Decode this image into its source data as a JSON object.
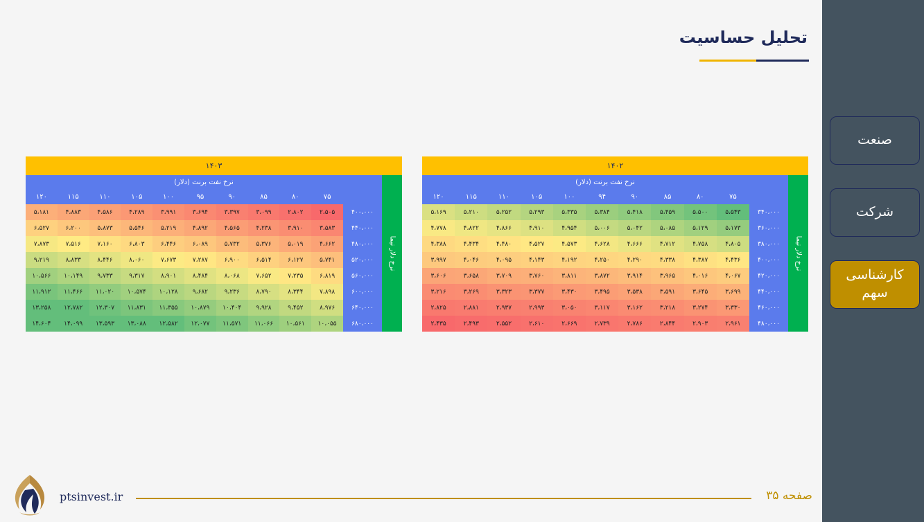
{
  "page": {
    "title": "تحلیل حساسیت",
    "footer_page": "صفحه ۳۵",
    "footer_site": "ptsinvest.ir"
  },
  "sidebar": {
    "items": [
      {
        "label": "صنعت"
      },
      {
        "label": "شرکت"
      },
      {
        "label": "کارشناسی سهم"
      }
    ]
  },
  "colors": {
    "sidebar": "#44535f",
    "active": "#bf8f00",
    "header_blue": "#5b7bec",
    "side_green": "#00b050",
    "year_yellow": "#ffc000",
    "navy": "#1f2a5a"
  },
  "tables": [
    {
      "year": "۱۴۰۲",
      "col_title": "نرخ نفت برنت (دلار)",
      "row_title": "نرخ دلار نیما",
      "cols": [
        "۷۵",
        "۸۰",
        "۸۵",
        "۹۰",
        "۹۴",
        "۱۰۰",
        "۱۰۵",
        "۱۱۰",
        "۱۱۵",
        "۱۲۰"
      ],
      "rows": [
        "۳۴۰،۰۰۰",
        "۳۶۰،۰۰۰",
        "۳۸۰،۰۰۰",
        "۴۰۰،۰۰۰",
        "۴۲۰،۰۰۰",
        "۴۴۰،۰۰۰",
        "۴۶۰،۰۰۰",
        "۴۸۰،۰۰۰"
      ],
      "values": [
        [
          "۵،۵۴۳",
          "۵،۵۰۰",
          "۵،۴۵۹",
          "۵،۴۱۸",
          "۵،۳۸۴",
          "۵،۳۳۵",
          "۵،۲۹۳",
          "۵،۲۵۲",
          "۵،۲۱۰",
          "۵،۱۶۹"
        ],
        [
          "۵،۱۷۳",
          "۵،۱۲۹",
          "۵،۰۸۵",
          "۵،۰۴۲",
          "۵،۰۰۶",
          "۴،۹۵۴",
          "۴،۹۱۰",
          "۴،۸۶۶",
          "۴،۸۲۲",
          "۴،۷۷۸"
        ],
        [
          "۴،۸۰۵",
          "۴،۷۵۸",
          "۴،۷۱۲",
          "۴،۶۶۶",
          "۴،۶۲۸",
          "۴،۵۷۳",
          "۴،۵۲۷",
          "۴،۴۸۰",
          "۴،۴۳۴",
          "۴،۳۸۸"
        ],
        [
          "۴،۴۳۶",
          "۴،۳۸۷",
          "۴،۳۳۸",
          "۴،۲۹۰",
          "۴،۲۵۰",
          "۴،۱۹۲",
          "۴،۱۴۳",
          "۴،۰۹۵",
          "۴،۰۴۶",
          "۳،۹۹۷"
        ],
        [
          "۴،۰۶۷",
          "۴،۰۱۶",
          "۳،۹۶۵",
          "۳،۹۱۴",
          "۳،۸۷۲",
          "۳،۸۱۱",
          "۳،۷۶۰",
          "۳،۷۰۹",
          "۳،۶۵۸",
          "۳،۶۰۶"
        ],
        [
          "۳،۶۹۹",
          "۳،۶۴۵",
          "۳،۵۹۱",
          "۳،۵۳۸",
          "۳،۴۹۵",
          "۳،۴۳۰",
          "۳،۳۷۷",
          "۳،۳۲۳",
          "۳،۲۶۹",
          "۳،۲۱۶"
        ],
        [
          "۳،۳۳۰",
          "۳،۲۷۴",
          "۳،۲۱۸",
          "۳،۱۶۲",
          "۳،۱۱۷",
          "۳،۰۵۰",
          "۲،۹۹۳",
          "۲،۹۳۷",
          "۲،۸۸۱",
          "۲،۸۲۵"
        ],
        [
          "۲،۹۶۱",
          "۲،۹۰۳",
          "۲،۸۴۴",
          "۲،۷۸۶",
          "۲،۷۳۹",
          "۲،۶۶۹",
          "۲،۶۱۰",
          "۲،۵۵۲",
          "۲،۴۹۳",
          "۲،۴۳۵"
        ]
      ],
      "heat": [
        [
          10,
          9.5,
          9,
          8.6,
          8.2,
          7.8,
          7.4,
          7,
          6.6,
          6.2
        ],
        [
          8.4,
          8,
          7.6,
          7.2,
          6.9,
          6.5,
          6.1,
          5.8,
          5.5,
          5.2
        ],
        [
          6.6,
          6.3,
          6,
          5.7,
          5.4,
          5.1,
          4.9,
          4.7,
          4.5,
          4.3
        ],
        [
          4.8,
          4.6,
          4.4,
          4.3,
          4.2,
          4.1,
          4,
          3.9,
          3.8,
          3.7
        ],
        [
          3.8,
          3.6,
          3.4,
          3.2,
          3,
          2.9,
          2.7,
          2.6,
          2.4,
          2.3
        ],
        [
          2.8,
          2.6,
          2.4,
          2.2,
          2,
          1.9,
          1.7,
          1.6,
          1.4,
          1.3
        ],
        [
          1.8,
          1.6,
          1.4,
          1.3,
          1.1,
          1,
          0.9,
          0.8,
          0.7,
          0.6
        ],
        [
          0.9,
          0.8,
          0.7,
          0.6,
          0.5,
          0.4,
          0.3,
          0.2,
          0.1,
          0
        ]
      ]
    },
    {
      "year": "۱۴۰۳",
      "col_title": "نرخ نفت برنت (دلار)",
      "row_title": "نرخ دلار نیما",
      "cols": [
        "۷۵",
        "۸۰",
        "۸۵",
        "۹۰",
        "۹۵",
        "۱۰۰",
        "۱۰۵",
        "۱۱۰",
        "۱۱۵",
        "۱۲۰"
      ],
      "rows": [
        "۴۰۰،۰۰۰",
        "۴۴۰،۰۰۰",
        "۴۸۰،۰۰۰",
        "۵۲۰،۰۰۰",
        "۵۶۰،۰۰۰",
        "۶۰۰،۰۰۰",
        "۶۴۰،۰۰۰",
        "۶۸۰،۰۰۰"
      ],
      "values": [
        [
          "۲،۵۰۵",
          "۲،۸۰۲",
          "۳،۰۹۹",
          "۳،۳۹۷",
          "۳،۶۹۴",
          "۳،۹۹۱",
          "۴،۲۸۹",
          "۴،۵۸۶",
          "۴،۸۸۳",
          "۵،۱۸۱"
        ],
        [
          "۳،۵۸۳",
          "۳،۹۱۰",
          "۴،۲۳۸",
          "۴،۵۶۵",
          "۴،۸۹۲",
          "۵،۲۱۹",
          "۵،۵۴۶",
          "۵،۸۷۳",
          "۶،۲۰۰",
          "۶،۵۲۷"
        ],
        [
          "۴،۶۶۲",
          "۵،۰۱۹",
          "۵،۳۷۶",
          "۵،۷۳۲",
          "۶،۰۸۹",
          "۶،۴۴۶",
          "۶،۸۰۳",
          "۷،۱۶۰",
          "۷،۵۱۶",
          "۷،۸۷۳"
        ],
        [
          "۵،۷۴۱",
          "۶،۱۲۷",
          "۶،۵۱۴",
          "۶،۹۰۰",
          "۷،۲۸۷",
          "۷،۶۷۳",
          "۸،۰۶۰",
          "۸،۴۴۶",
          "۸،۸۳۳",
          "۹،۲۱۹"
        ],
        [
          "۶،۸۱۹",
          "۷،۲۳۵",
          "۷،۶۵۲",
          "۸،۰۶۸",
          "۸،۴۸۴",
          "۸،۹۰۱",
          "۹،۳۱۷",
          "۹،۷۳۳",
          "۱۰،۱۴۹",
          "۱۰،۵۶۶"
        ],
        [
          "۷،۸۹۸",
          "۸،۳۴۴",
          "۸،۷۹۰",
          "۹،۲۳۶",
          "۹،۶۸۲",
          "۱۰،۱۲۸",
          "۱۰،۵۷۴",
          "۱۱،۰۲۰",
          "۱۱،۴۶۶",
          "۱۱،۹۱۲"
        ],
        [
          "۸،۹۷۶",
          "۹،۴۵۲",
          "۹،۹۲۸",
          "۱۰،۴۰۴",
          "۱۰،۸۷۹",
          "۱۱،۳۵۵",
          "۱۱،۸۳۱",
          "۱۲،۳۰۷",
          "۱۲،۷۸۲",
          "۱۳،۲۵۸"
        ],
        [
          "۱۰،۰۵۵",
          "۱۰،۵۶۱",
          "۱۱،۰۶۶",
          "۱۱،۵۷۱",
          "۱۲،۰۷۷",
          "۱۲،۵۸۲",
          "۱۳،۰۸۸",
          "۱۳،۵۹۳",
          "۱۴،۰۹۹",
          "۱۴،۶۰۴"
        ]
      ],
      "heat": [
        [
          0,
          0.3,
          0.6,
          0.9,
          1.2,
          1.5,
          1.8,
          2.1,
          2.4,
          2.7
        ],
        [
          1.1,
          1.4,
          1.7,
          2,
          2.4,
          2.7,
          3,
          3.3,
          3.6,
          4
        ],
        [
          2.2,
          2.5,
          2.9,
          3.2,
          3.6,
          3.9,
          4.3,
          4.6,
          5,
          5.3
        ],
        [
          3.3,
          3.6,
          4,
          4.4,
          4.8,
          5.1,
          5.5,
          5.9,
          6.3,
          6.7
        ],
        [
          4.4,
          4.8,
          5.2,
          5.6,
          6,
          6.4,
          6.8,
          7.2,
          7.6,
          8
        ],
        [
          5.4,
          5.9,
          6.3,
          6.8,
          7.2,
          7.6,
          8,
          8.5,
          8.9,
          9.3
        ],
        [
          6.5,
          7,
          7.5,
          7.9,
          8.4,
          8.8,
          9.2,
          9.6,
          10,
          10
        ],
        [
          7.6,
          8.1,
          8.6,
          9.1,
          9.5,
          10,
          10,
          10,
          10,
          10
        ]
      ]
    }
  ]
}
